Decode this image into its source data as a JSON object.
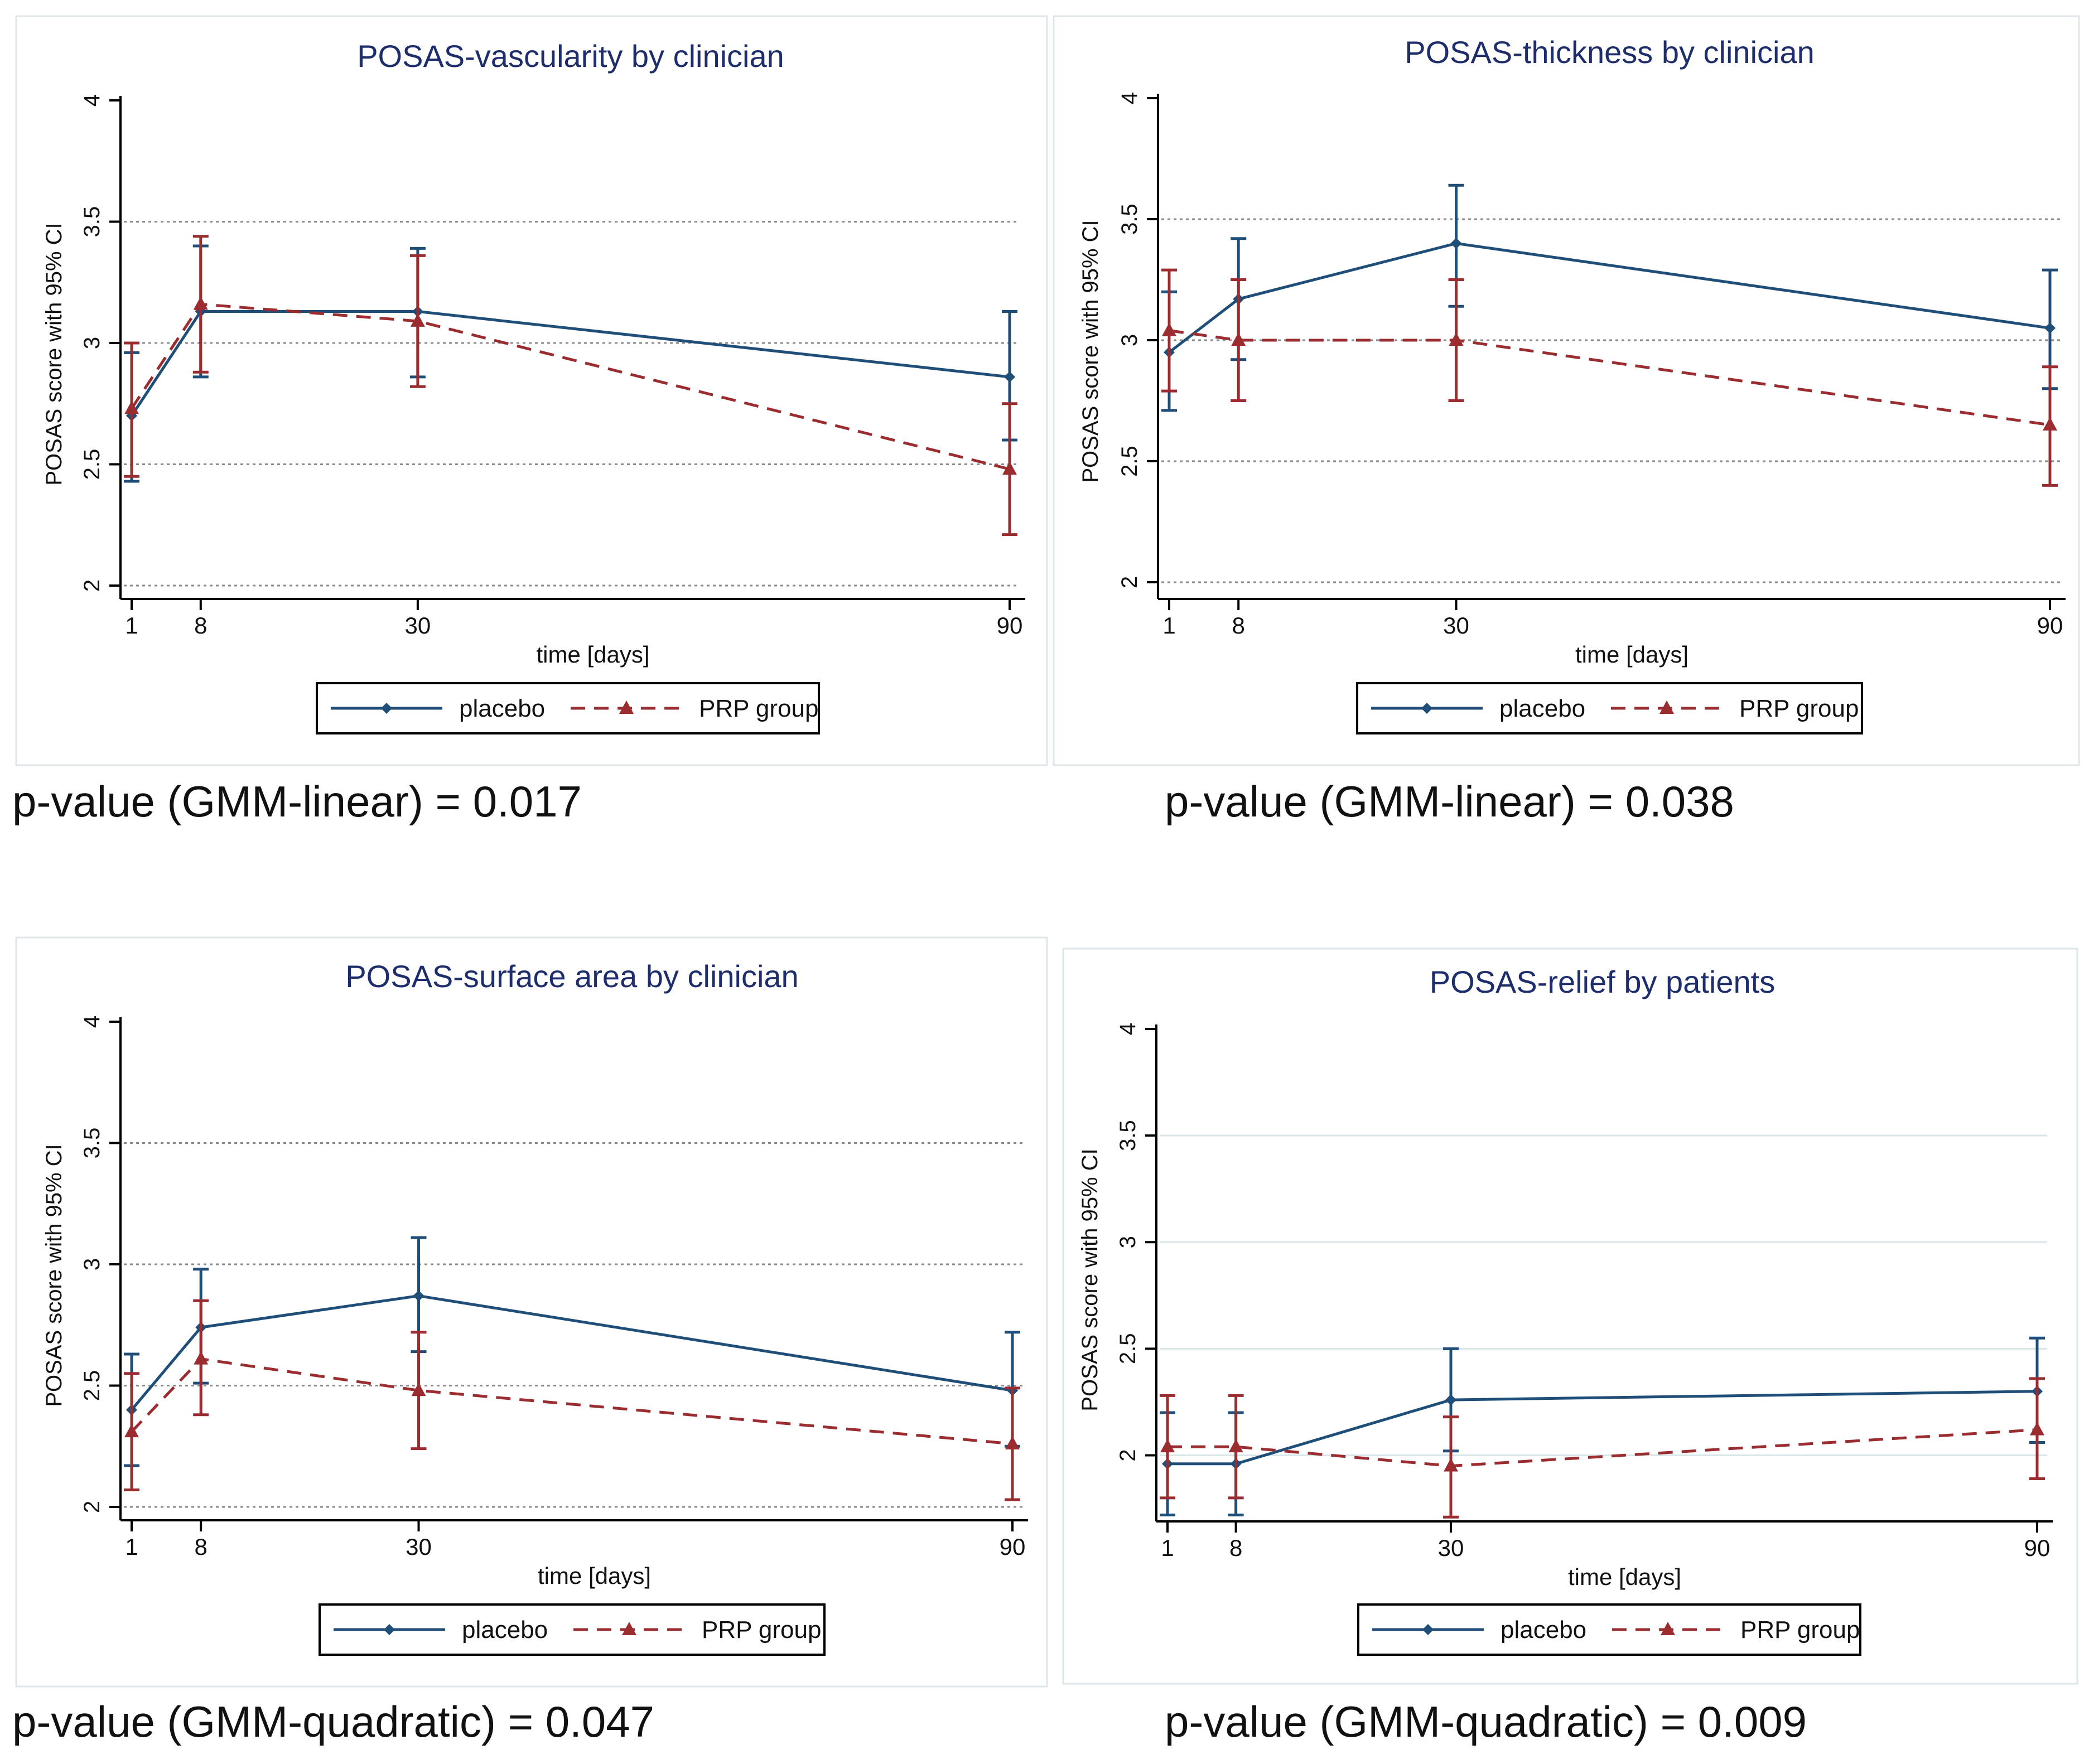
{
  "colors": {
    "placebo": "#1f4e79",
    "prp": "#9b2d30",
    "title": "#1e2d6b",
    "frame": "#dfe6ea",
    "gridDotted": "#8a8a8a",
    "gridSolid": "#d8e6ea",
    "axis": "#000000"
  },
  "chart_data": [
    {
      "type": "line",
      "title": "POSAS-vascularity by clinician",
      "xlabel": "time [days]",
      "ylabel": "POSAS score with 95% CI",
      "x": [
        1,
        8,
        30,
        90
      ],
      "xticks": [
        "1",
        "8",
        "30",
        "90"
      ],
      "ylim": [
        2,
        4
      ],
      "yticks": [
        "2",
        "2.5",
        "3",
        "3.5",
        "4"
      ],
      "grid": "dotted",
      "series": [
        {
          "name": "placebo",
          "marker": "diamond",
          "dash": false,
          "values": [
            2.7,
            3.13,
            3.13,
            2.86
          ],
          "ci_low": [
            2.43,
            2.86,
            2.86,
            2.6
          ],
          "ci_high": [
            2.96,
            3.4,
            3.39,
            3.13
          ]
        },
        {
          "name": "PRP group",
          "marker": "triangle",
          "dash": true,
          "values": [
            2.73,
            3.16,
            3.09,
            2.48
          ],
          "ci_low": [
            2.45,
            2.88,
            2.82,
            2.21
          ],
          "ci_high": [
            3.0,
            3.44,
            3.36,
            2.75
          ]
        }
      ],
      "pvalue": "p-value (GMM-linear) = 0.017"
    },
    {
      "type": "line",
      "title": "POSAS-thickness by clinician",
      "xlabel": "time [days]",
      "ylabel": "POSAS score with 95% CI",
      "x": [
        1,
        8,
        30,
        90
      ],
      "xticks": [
        "1",
        "8",
        "30",
        "90"
      ],
      "ylim": [
        2,
        4
      ],
      "yticks": [
        "2",
        "2.5",
        "3",
        "3.5",
        "4"
      ],
      "grid": "dotted",
      "series": [
        {
          "name": "placebo",
          "marker": "diamond",
          "dash": false,
          "values": [
            2.95,
            3.17,
            3.4,
            3.05
          ],
          "ci_low": [
            2.71,
            2.92,
            3.14,
            2.8
          ],
          "ci_high": [
            3.2,
            3.42,
            3.64,
            3.29
          ]
        },
        {
          "name": "PRP group",
          "marker": "triangle",
          "dash": true,
          "values": [
            3.04,
            3.0,
            3.0,
            2.65
          ],
          "ci_low": [
            2.79,
            2.75,
            2.75,
            2.4
          ],
          "ci_high": [
            3.29,
            3.25,
            3.25,
            2.89
          ]
        }
      ],
      "pvalue": "p-value (GMM-linear) = 0.038"
    },
    {
      "type": "line",
      "title": "POSAS-surface area by clinician",
      "xlabel": "time [days]",
      "ylabel": "POSAS score with 95% CI",
      "x": [
        1,
        8,
        30,
        90
      ],
      "xticks": [
        "1",
        "8",
        "30",
        "90"
      ],
      "ylim": [
        2,
        4
      ],
      "yticks": [
        "2",
        "2.5",
        "3",
        "3.5",
        "4"
      ],
      "grid": "dotted",
      "series": [
        {
          "name": "placebo",
          "marker": "diamond",
          "dash": false,
          "values": [
            2.4,
            2.74,
            2.87,
            2.48
          ],
          "ci_low": [
            2.17,
            2.51,
            2.64,
            2.25
          ],
          "ci_high": [
            2.63,
            2.98,
            3.11,
            2.72
          ]
        },
        {
          "name": "PRP group",
          "marker": "triangle",
          "dash": true,
          "values": [
            2.31,
            2.61,
            2.48,
            2.26
          ],
          "ci_low": [
            2.07,
            2.38,
            2.24,
            2.03
          ],
          "ci_high": [
            2.55,
            2.85,
            2.72,
            2.49
          ]
        }
      ],
      "pvalue": "p-value (GMM-quadratic) = 0.047"
    },
    {
      "type": "line",
      "title": "POSAS-relief by patients",
      "xlabel": "time [days]",
      "ylabel": "POSAS score with 95% CI",
      "x": [
        1,
        8,
        30,
        90
      ],
      "xticks": [
        "1",
        "8",
        "30",
        "90"
      ],
      "ylim": [
        1.75,
        4
      ],
      "yticks": [
        "2",
        "2.5",
        "3",
        "3.5",
        "4"
      ],
      "grid": "solid",
      "series": [
        {
          "name": "placebo",
          "marker": "diamond",
          "dash": false,
          "values": [
            1.96,
            1.96,
            2.26,
            2.3
          ],
          "ci_low": [
            1.72,
            1.72,
            2.02,
            2.06
          ],
          "ci_high": [
            2.2,
            2.2,
            2.5,
            2.55
          ]
        },
        {
          "name": "PRP group",
          "marker": "triangle",
          "dash": true,
          "values": [
            2.04,
            2.04,
            1.95,
            2.12
          ],
          "ci_low": [
            1.8,
            1.8,
            1.71,
            1.89
          ],
          "ci_high": [
            2.28,
            2.28,
            2.18,
            2.36
          ]
        }
      ],
      "pvalue": "p-value (GMM-quadratic) = 0.009"
    }
  ]
}
